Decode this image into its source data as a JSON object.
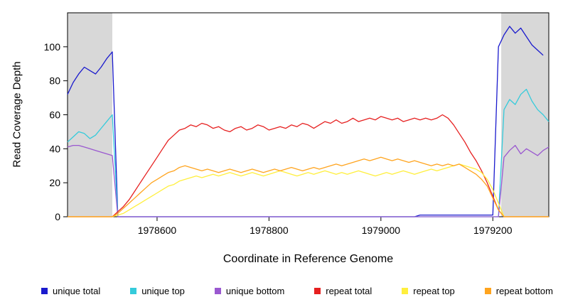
{
  "chart_data": {
    "type": "line",
    "title": "",
    "xlabel": "Coordinate in Reference Genome",
    "ylabel": "Read Coverage Depth",
    "xlim": [
      1978440,
      1979300
    ],
    "ylim": [
      0,
      120
    ],
    "x_ticks": [
      1978600,
      1978800,
      1979000,
      1979200
    ],
    "y_ticks": [
      0,
      20,
      40,
      60,
      80,
      100
    ],
    "x_start": 1978440,
    "x_step": 10,
    "grid": false,
    "legend_position": "bottom",
    "shaded_regions": [
      {
        "x0": 1978440,
        "x1": 1978520,
        "color": "#d8d8d8"
      },
      {
        "x0": 1979215,
        "x1": 1979300,
        "color": "#d8d8d8"
      }
    ],
    "series": [
      {
        "name": "unique total",
        "color": "#1a1acd",
        "values": [
          72,
          79,
          84,
          88,
          86,
          84,
          88,
          93,
          97,
          0,
          0,
          0,
          0,
          0,
          0,
          0,
          0,
          0,
          0,
          0,
          0,
          0,
          0,
          0,
          0,
          0,
          0,
          0,
          0,
          0,
          0,
          0,
          0,
          0,
          0,
          0,
          0,
          0,
          0,
          0,
          0,
          0,
          0,
          0,
          0,
          0,
          0,
          0,
          0,
          0,
          0,
          0,
          0,
          0,
          0,
          0,
          0,
          0,
          0,
          0,
          0,
          0,
          0,
          1,
          1,
          1,
          1,
          1,
          1,
          1,
          1,
          1,
          1,
          1,
          1,
          1,
          1,
          100,
          107,
          112,
          108,
          111,
          106,
          101,
          98,
          95
        ]
      },
      {
        "name": "unique top",
        "color": "#35cbdb",
        "values": [
          44,
          47,
          50,
          49,
          46,
          48,
          52,
          56,
          60,
          0,
          0,
          0,
          0,
          0,
          0,
          0,
          0,
          0,
          0,
          0,
          0,
          0,
          0,
          0,
          0,
          0,
          0,
          0,
          0,
          0,
          0,
          0,
          0,
          0,
          0,
          0,
          0,
          0,
          0,
          0,
          0,
          0,
          0,
          0,
          0,
          0,
          0,
          0,
          0,
          0,
          0,
          0,
          0,
          0,
          0,
          0,
          0,
          0,
          0,
          0,
          0,
          0,
          0,
          0,
          0,
          0,
          0,
          0,
          0,
          0,
          0,
          0,
          0,
          0,
          0,
          0,
          0,
          0,
          63,
          69,
          66,
          72,
          75,
          68,
          63,
          60,
          56
        ]
      },
      {
        "name": "unique bottom",
        "color": "#9a58d0",
        "values": [
          41,
          42,
          42,
          41,
          40,
          39,
          38,
          37,
          36,
          0,
          0,
          0,
          0,
          0,
          0,
          0,
          0,
          0,
          0,
          0,
          0,
          0,
          0,
          0,
          0,
          0,
          0,
          0,
          0,
          0,
          0,
          0,
          0,
          0,
          0,
          0,
          0,
          0,
          0,
          0,
          0,
          0,
          0,
          0,
          0,
          0,
          0,
          0,
          0,
          0,
          0,
          0,
          0,
          0,
          0,
          0,
          0,
          0,
          0,
          0,
          0,
          0,
          0,
          0,
          0,
          0,
          0,
          0,
          0,
          0,
          0,
          0,
          0,
          0,
          0,
          0,
          0,
          0,
          35,
          39,
          42,
          37,
          40,
          38,
          36,
          39,
          41
        ]
      },
      {
        "name": "repeat total",
        "color": "#e62020",
        "values": [
          0,
          0,
          0,
          0,
          0,
          0,
          0,
          0,
          0,
          3,
          6,
          10,
          15,
          20,
          25,
          30,
          35,
          40,
          45,
          48,
          51,
          52,
          54,
          53,
          55,
          54,
          52,
          53,
          51,
          50,
          52,
          53,
          51,
          52,
          54,
          53,
          51,
          52,
          53,
          52,
          54,
          53,
          55,
          54,
          52,
          54,
          56,
          55,
          57,
          55,
          56,
          58,
          56,
          57,
          58,
          57,
          59,
          58,
          57,
          58,
          56,
          57,
          58,
          57,
          58,
          57,
          58,
          60,
          58,
          54,
          49,
          44,
          38,
          33,
          27,
          20,
          12,
          4,
          0,
          0,
          0,
          0,
          0,
          0,
          0,
          0,
          0
        ]
      },
      {
        "name": "repeat top",
        "color": "#ffef3d",
        "values": [
          0,
          0,
          0,
          0,
          0,
          0,
          0,
          0,
          0,
          1,
          2,
          4,
          6,
          8,
          10,
          12,
          14,
          16,
          18,
          19,
          21,
          22,
          23,
          24,
          23,
          24,
          25,
          24,
          25,
          26,
          25,
          24,
          25,
          26,
          25,
          24,
          25,
          26,
          27,
          26,
          25,
          24,
          25,
          26,
          25,
          26,
          27,
          26,
          25,
          26,
          25,
          26,
          27,
          26,
          25,
          24,
          25,
          26,
          25,
          26,
          27,
          26,
          25,
          26,
          27,
          28,
          27,
          28,
          29,
          30,
          31,
          30,
          29,
          28,
          26,
          22,
          16,
          8,
          0,
          0,
          0,
          0,
          0,
          0,
          0,
          0,
          0
        ]
      },
      {
        "name": "repeat bottom",
        "color": "#ffa41e",
        "values": [
          0,
          0,
          0,
          0,
          0,
          0,
          0,
          0,
          0,
          2,
          5,
          8,
          11,
          14,
          17,
          20,
          22,
          24,
          26,
          27,
          29,
          30,
          29,
          28,
          27,
          28,
          27,
          26,
          27,
          28,
          27,
          26,
          27,
          28,
          27,
          26,
          27,
          28,
          27,
          28,
          29,
          28,
          27,
          28,
          29,
          28,
          29,
          30,
          31,
          30,
          31,
          32,
          33,
          34,
          33,
          34,
          35,
          34,
          33,
          34,
          33,
          32,
          33,
          32,
          31,
          30,
          31,
          30,
          31,
          30,
          31,
          29,
          27,
          25,
          22,
          18,
          11,
          4,
          0,
          0,
          0,
          0,
          0,
          0,
          0,
          0,
          0
        ]
      }
    ]
  }
}
